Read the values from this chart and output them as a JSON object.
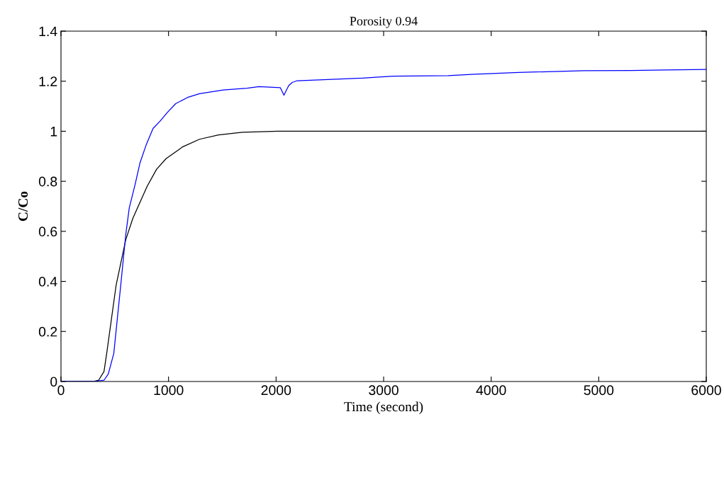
{
  "chart_data": {
    "type": "line",
    "title": "Porosity 0.94",
    "xlabel": "Time (second)",
    "ylabel": "C/Co",
    "xlim": [
      0,
      6000
    ],
    "ylim": [
      0,
      1.4
    ],
    "xticks": [
      0,
      1000,
      2000,
      3000,
      4000,
      5000,
      6000
    ],
    "yticks": [
      0,
      {
        "value": 0.2,
        "label": "0.2"
      },
      {
        "value": 0.4,
        "label": "0.4"
      },
      {
        "value": 0.6,
        "label": "0.6"
      },
      {
        "value": 0.8,
        "label": "0.8"
      },
      1,
      {
        "value": 1.2,
        "label": "1.2"
      },
      {
        "value": 1.4,
        "label": "1.4"
      }
    ],
    "grid": false,
    "line_style": "solid",
    "marker": "none",
    "series": [
      {
        "color": "#000000",
        "x": [
          0,
          300,
          350,
          400,
          425,
          513,
          602,
          668,
          801,
          889,
          978,
          1133,
          1288,
          1465,
          1686,
          2018,
          3000,
          4000,
          5000,
          6000
        ],
        "values": [
          0,
          0,
          0.005,
          0.04,
          0.112,
          0.386,
          0.566,
          0.652,
          0.78,
          0.848,
          0.891,
          0.938,
          0.968,
          0.985,
          0.996,
          1.0,
          1.0,
          1.0,
          1.0,
          1.0
        ]
      },
      {
        "color": "#0000ff",
        "x": [
          0,
          300,
          400,
          440,
          491,
          558,
          602,
          635,
          690,
          735,
          790,
          856,
          923,
          989,
          1066,
          1177,
          1288,
          1509,
          1730,
          1841,
          2040,
          2073,
          2117,
          2150,
          2196,
          2400,
          2800,
          3085,
          3600,
          3845,
          4253,
          4860,
          5300,
          5600,
          6000
        ],
        "values": [
          0,
          0,
          0.005,
          0.03,
          0.112,
          0.395,
          0.586,
          0.694,
          0.789,
          0.874,
          0.943,
          1.011,
          1.041,
          1.075,
          1.11,
          1.135,
          1.15,
          1.165,
          1.172,
          1.178,
          1.174,
          1.144,
          1.182,
          1.195,
          1.202,
          1.205,
          1.212,
          1.22,
          1.222,
          1.228,
          1.235,
          1.242,
          1.243,
          1.245,
          1.247
        ]
      }
    ]
  }
}
